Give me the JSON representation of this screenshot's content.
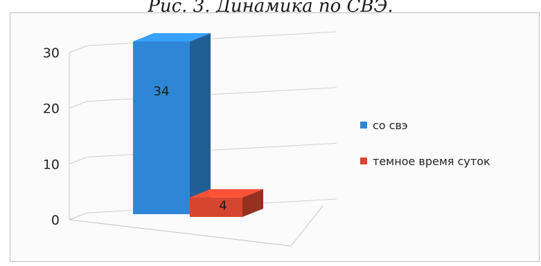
{
  "caption": "Рис. 3. Динамика по СВЭ.",
  "chart_data": {
    "type": "bar",
    "categories": [
      ""
    ],
    "series": [
      {
        "name": "со свэ",
        "values": [
          34
        ],
        "color": "#2f86d6"
      },
      {
        "name": "темное время суток",
        "values": [
          4
        ],
        "color": "#d6452f"
      }
    ],
    "data_labels": [
      "34",
      "4"
    ],
    "ylim": [
      0,
      30
    ],
    "yticks": [
      0,
      10,
      20,
      30
    ],
    "grid": true,
    "legend_position": "right",
    "style": "3d-column"
  }
}
